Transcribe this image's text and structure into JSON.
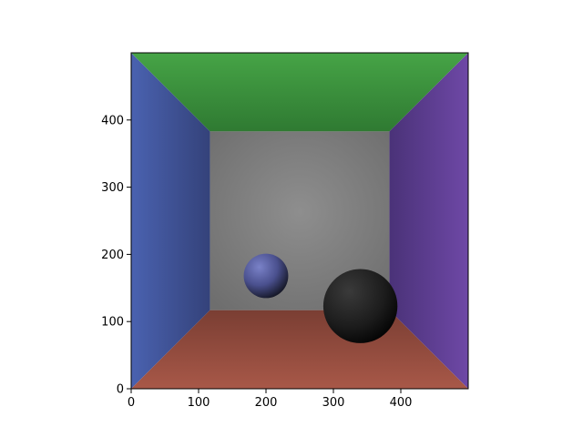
{
  "image": {
    "title": "",
    "xlabel": "",
    "ylabel": "",
    "xlim": [
      0,
      500
    ],
    "ylim": [
      0,
      500
    ],
    "x_ticks": [
      0,
      100,
      200,
      300,
      400
    ],
    "y_ticks": [
      0,
      100,
      200,
      300,
      400
    ],
    "x_tick_labels": [
      "0",
      "100",
      "200",
      "300",
      "400"
    ],
    "y_tick_labels": [
      "0",
      "100",
      "200",
      "300",
      "400"
    ],
    "scene": {
      "back_wall": {
        "x": [
          117,
          383
        ],
        "y": [
          117,
          383
        ],
        "color": "#8a8a8a"
      },
      "left_wall_color": "#4a60aa",
      "right_wall_color": "#6a45a0",
      "ceiling_color": "#4aa84a",
      "floor_color": "#a85a48",
      "spheres": [
        {
          "name": "small-blue-sphere",
          "cx": 200,
          "cy": 168,
          "r": 33,
          "color": "#5a62a8"
        },
        {
          "name": "large-black-sphere",
          "cx": 340,
          "cy": 123,
          "r": 55,
          "color": "#2a2a2a"
        }
      ]
    }
  }
}
